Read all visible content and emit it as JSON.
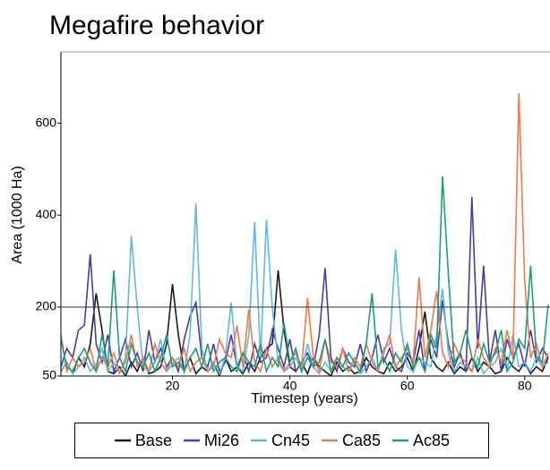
{
  "chart_data": {
    "type": "line",
    "title": "Megafire behavior",
    "x_label": "Timestep (years)",
    "y_label": "Area (1000 Ha)",
    "x": [
      1,
      2,
      3,
      4,
      5,
      6,
      7,
      8,
      9,
      10,
      11,
      12,
      13,
      14,
      15,
      16,
      17,
      18,
      19,
      20,
      21,
      22,
      23,
      24,
      25,
      26,
      27,
      28,
      29,
      30,
      31,
      32,
      33,
      34,
      35,
      36,
      37,
      38,
      39,
      40,
      41,
      42,
      43,
      44,
      45,
      46,
      47,
      48,
      49,
      50,
      51,
      52,
      53,
      54,
      55,
      56,
      57,
      58,
      59,
      60,
      61,
      62,
      63,
      64,
      65,
      66,
      67,
      68,
      69,
      70,
      71,
      72,
      73,
      74,
      75,
      76,
      77,
      78,
      79,
      80,
      81,
      82,
      83,
      84
    ],
    "xlim": [
      1,
      84
    ],
    "xticks": [
      20,
      40,
      60,
      80
    ],
    "ylim": [
      50,
      755
    ],
    "yticks": [
      50,
      200,
      400,
      600
    ],
    "reference_line": 200,
    "series": [
      {
        "name": "Base",
        "color": "#1a1a1a",
        "values": [
          60,
          80,
          55,
          90,
          70,
          120,
          230,
          150,
          60,
          55,
          70,
          50,
          80,
          60,
          90,
          55,
          60,
          70,
          120,
          250,
          140,
          60,
          90,
          55,
          70,
          60,
          80,
          50,
          90,
          60,
          70,
          55,
          80,
          60,
          90,
          110,
          120,
          280,
          150,
          70,
          60,
          80,
          55,
          90,
          70,
          60,
          50,
          80,
          60,
          70,
          55,
          60,
          90,
          70,
          60,
          55,
          80,
          60,
          70,
          90,
          60,
          110,
          190,
          90,
          70,
          60,
          80,
          55,
          70,
          60,
          90,
          60,
          80,
          70,
          55,
          60,
          90,
          70,
          60,
          80,
          55,
          70,
          60,
          90
        ]
      },
      {
        "name": "Mi26",
        "color": "#4b3ba6",
        "values": [
          70,
          110,
          90,
          150,
          160,
          315,
          120,
          80,
          140,
          60,
          90,
          130,
          70,
          100,
          60,
          150,
          80,
          110,
          70,
          90,
          60,
          130,
          180,
          210,
          90,
          70,
          120,
          60,
          80,
          140,
          70,
          100,
          60,
          120,
          80,
          90,
          150,
          110,
          70,
          130,
          60,
          80,
          100,
          70,
          140,
          285,
          90,
          60,
          110,
          80,
          70,
          120,
          60,
          90,
          140,
          80,
          110,
          70,
          60,
          100,
          80,
          150,
          60,
          130,
          90,
          215,
          120,
          70,
          100,
          60,
          440,
          110,
          290,
          80,
          150,
          60,
          130,
          90,
          120,
          70,
          150,
          80,
          110,
          90
        ]
      },
      {
        "name": "Cn45",
        "color": "#5fb7e6",
        "values": [
          60,
          80,
          55,
          70,
          90,
          60,
          75,
          110,
          60,
          80,
          55,
          90,
          355,
          200,
          70,
          60,
          80,
          130,
          60,
          75,
          90,
          60,
          140,
          425,
          110,
          60,
          80,
          55,
          90,
          210,
          70,
          60,
          140,
          385,
          90,
          390,
          200,
          80,
          60,
          70,
          90,
          60,
          120,
          70,
          55,
          80,
          60,
          90,
          70,
          60,
          80,
          55,
          70,
          90,
          60,
          110,
          120,
          325,
          150,
          70,
          60,
          90,
          80,
          70,
          140,
          240,
          100,
          60,
          80,
          70,
          60,
          90,
          55,
          70,
          80,
          110,
          60,
          140,
          70,
          80,
          60,
          90,
          70,
          80
        ]
      },
      {
        "name": "Ca85",
        "color": "#f07a4a",
        "values": [
          140,
          60,
          90,
          70,
          80,
          110,
          60,
          90,
          70,
          100,
          60,
          80,
          140,
          70,
          90,
          60,
          120,
          80,
          60,
          90,
          70,
          110,
          60,
          80,
          90,
          60,
          70,
          130,
          100,
          90,
          160,
          70,
          195,
          80,
          60,
          110,
          70,
          90,
          60,
          80,
          100,
          70,
          220,
          90,
          60,
          130,
          80,
          70,
          110,
          60,
          90,
          70,
          120,
          80,
          60,
          100,
          140,
          70,
          90,
          110,
          80,
          265,
          90,
          150,
          235,
          100,
          70,
          120,
          90,
          80,
          60,
          130,
          90,
          70,
          110,
          80,
          150,
          90,
          665,
          255,
          90,
          120,
          70,
          100
        ]
      },
      {
        "name": "Ac85",
        "color": "#1a9e77",
        "values": [
          130,
          70,
          60,
          90,
          110,
          80,
          60,
          140,
          70,
          280,
          90,
          60,
          120,
          80,
          70,
          100,
          60,
          90,
          140,
          70,
          80,
          60,
          90,
          110,
          70,
          120,
          60,
          80,
          90,
          70,
          60,
          100,
          80,
          70,
          120,
          60,
          90,
          70,
          165,
          80,
          110,
          60,
          90,
          70,
          80,
          130,
          60,
          90,
          70,
          100,
          80,
          60,
          120,
          230,
          70,
          90,
          60,
          100,
          80,
          120,
          70,
          90,
          60,
          140,
          110,
          485,
          270,
          80,
          100,
          150,
          90,
          70,
          120,
          80,
          100,
          150,
          60,
          80,
          130,
          110,
          290,
          90,
          80,
          205
        ]
      }
    ]
  }
}
